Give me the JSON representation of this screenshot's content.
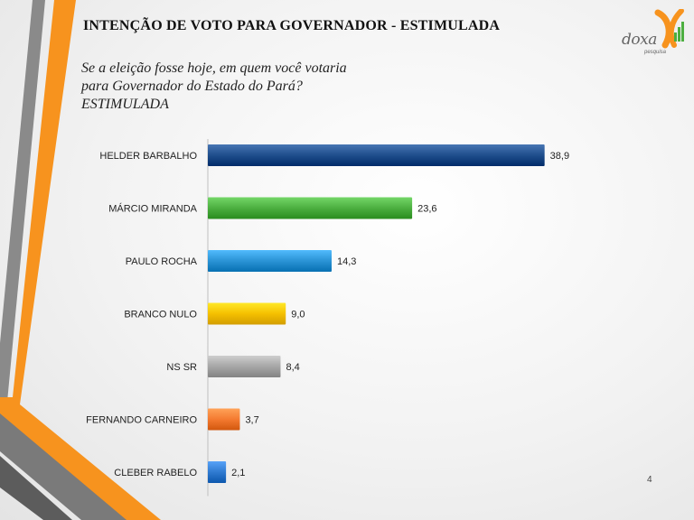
{
  "slide": {
    "title": "INTENÇÃO DE VOTO PARA GOVERNADOR - ESTIMULADA",
    "subtitle": "Se a eleição fosse hoje, em quem você votaria para Governador do Estado do Pará? ESTIMULADA",
    "page_number": "4",
    "logo": {
      "name": "Doxa",
      "tagline": "pesquisa",
      "accent_color": "#f7931e"
    }
  },
  "chart_data": {
    "type": "bar",
    "orientation": "horizontal",
    "title": "",
    "xlabel": "",
    "ylabel": "",
    "xlim": [
      0,
      50
    ],
    "grid": false,
    "legend": "none",
    "categories": [
      "HELDER BARBALHO",
      "MÁRCIO MIRANDA",
      "PAULO ROCHA",
      "BRANCO NULO",
      "NS SR",
      "FERNANDO CARNEIRO",
      "CLEBER RABELO"
    ],
    "values": [
      38.9,
      23.6,
      14.3,
      9.0,
      8.4,
      3.7,
      2.1
    ],
    "value_labels": [
      "38,9",
      "23,6",
      "14,3",
      "9,0",
      "8,4",
      "3,7",
      "2,1"
    ],
    "colors": [
      "#1f4e8c",
      "#4caf40",
      "#2a93d5",
      "#f5c000",
      "#a6a6a6",
      "#f47a30",
      "#2f7ad0"
    ]
  }
}
